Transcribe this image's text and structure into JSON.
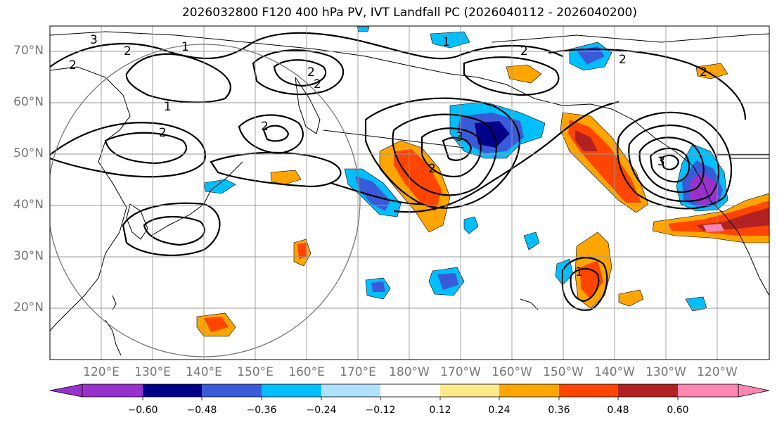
{
  "title": "2026032800 F120 400 hPa PV, IVT Landfall PC (2026040112 - 2026040200)",
  "map": {
    "lat_labels": [
      "70°N",
      "60°N",
      "50°N",
      "40°N",
      "30°N",
      "20°N"
    ],
    "lon_labels": [
      "120°E",
      "130°E",
      "140°E",
      "150°E",
      "160°E",
      "170°E",
      "180°W",
      "170°W",
      "160°W",
      "150°W",
      "140°W",
      "130°W",
      "120°W"
    ],
    "contour_labels": [
      "3",
      "2",
      "1",
      "2",
      "2",
      "1",
      "2",
      "2",
      "2",
      "3",
      "2",
      "2",
      "1",
      "3",
      "2",
      "1",
      "2"
    ]
  },
  "colorbar": {
    "tick_labels": [
      "−0.60",
      "−0.48",
      "−0.36",
      "−0.24",
      "−0.12",
      "0.12",
      "0.24",
      "0.36",
      "0.48",
      "0.60"
    ],
    "colors": [
      "#9932CC",
      "#00008B",
      "#3A5BD9",
      "#00BFFF",
      "#B0E2FF",
      "#FFFFFF",
      "#FFE98A",
      "#FFA500",
      "#FF4500",
      "#B22222",
      "#FF85B3"
    ]
  },
  "chart_data": {
    "type": "heatmap",
    "title": "2026032800 F120 400 hPa PV, IVT Landfall PC (2026040112 - 2026040200)",
    "lat_range": [
      10,
      75
    ],
    "lon_range": [
      110,
      250
    ],
    "colorbar_levels": [
      -0.6,
      -0.48,
      -0.36,
      -0.24,
      -0.12,
      0.12,
      0.24,
      0.36,
      0.48,
      0.6
    ],
    "pv_contour_levels": [
      1,
      2,
      3
    ],
    "grid": true
  }
}
